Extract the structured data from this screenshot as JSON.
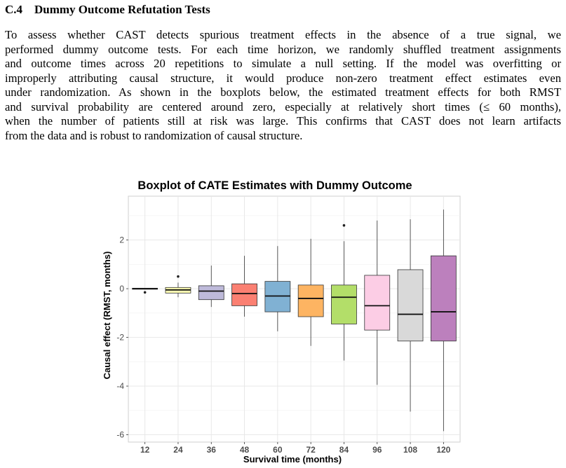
{
  "section": {
    "number": "C.4",
    "title": "Dummy Outcome Refutation Tests"
  },
  "paragraph_lines": [
    "To assess whether CAST detects spurious treatment effects in the absence of a true signal, we",
    "performed dummy outcome tests. For each time horizon, we randomly shuffled treatment assignments",
    "and outcome times across 20 repetitions to simulate a null setting. If the model was overfitting or",
    "improperly attributing causal structure, it would produce non-zero treatment effect estimates even",
    "under randomization. As shown in the boxplots below, the estimated treatment effects for both RMST",
    "and survival probability are centered around zero, especially at relatively short times (≤ 60 months),",
    "when the number of patients still at risk was large. This confirms that CAST does not learn artifacts",
    "from the data and is robust to randomization of causal structure."
  ],
  "chart_data": {
    "type": "boxplot",
    "title": "Boxplot of CATE Estimates with Dummy Outcome",
    "xlabel": "Survival time (months)",
    "ylabel": "Causal effect (RMST, months)",
    "ylim": [
      -6.3,
      3.8
    ],
    "yticks": [
      -6,
      -4,
      -2,
      0,
      2
    ],
    "grid": true,
    "legend": "none",
    "categories": [
      "12",
      "24",
      "36",
      "48",
      "60",
      "72",
      "84",
      "96",
      "108",
      "120"
    ],
    "boxes": [
      {
        "category": "12",
        "whisker_low": -0.02,
        "q1": -0.02,
        "median": 0.0,
        "q3": 0.02,
        "whisker_high": 0.02,
        "outliers": [
          -0.15
        ],
        "color": "#8DD3C7"
      },
      {
        "category": "24",
        "whisker_low": -0.35,
        "q1": -0.18,
        "median": -0.05,
        "q3": 0.05,
        "whisker_high": 0.25,
        "outliers": [
          0.5
        ],
        "color": "#FFFFB3"
      },
      {
        "category": "36",
        "whisker_low": -0.75,
        "q1": -0.45,
        "median": -0.1,
        "q3": 0.12,
        "whisker_high": 0.95,
        "outliers": [],
        "color": "#BEBADA"
      },
      {
        "category": "48",
        "whisker_low": -1.15,
        "q1": -0.7,
        "median": -0.2,
        "q3": 0.2,
        "whisker_high": 1.35,
        "outliers": [],
        "color": "#FB8072"
      },
      {
        "category": "60",
        "whisker_low": -1.75,
        "q1": -0.95,
        "median": -0.3,
        "q3": 0.3,
        "whisker_high": 1.75,
        "outliers": [],
        "color": "#80B1D3"
      },
      {
        "category": "72",
        "whisker_low": -2.35,
        "q1": -1.15,
        "median": -0.4,
        "q3": 0.15,
        "whisker_high": 2.05,
        "outliers": [],
        "color": "#FDB462"
      },
      {
        "category": "84",
        "whisker_low": -2.95,
        "q1": -1.45,
        "median": -0.35,
        "q3": 0.15,
        "whisker_high": 1.95,
        "outliers": [
          2.6
        ],
        "color": "#B3DE69"
      },
      {
        "category": "96",
        "whisker_low": -3.95,
        "q1": -1.7,
        "median": -0.7,
        "q3": 0.55,
        "whisker_high": 2.8,
        "outliers": [],
        "color": "#FCCDE5"
      },
      {
        "category": "108",
        "whisker_low": -5.05,
        "q1": -2.15,
        "median": -1.05,
        "q3": 0.78,
        "whisker_high": 2.85,
        "outliers": [],
        "color": "#D9D9D9"
      },
      {
        "category": "120",
        "whisker_low": -5.85,
        "q1": -2.15,
        "median": -0.95,
        "q3": 1.35,
        "whisker_high": 3.25,
        "outliers": [],
        "color": "#BC80BD"
      }
    ]
  }
}
